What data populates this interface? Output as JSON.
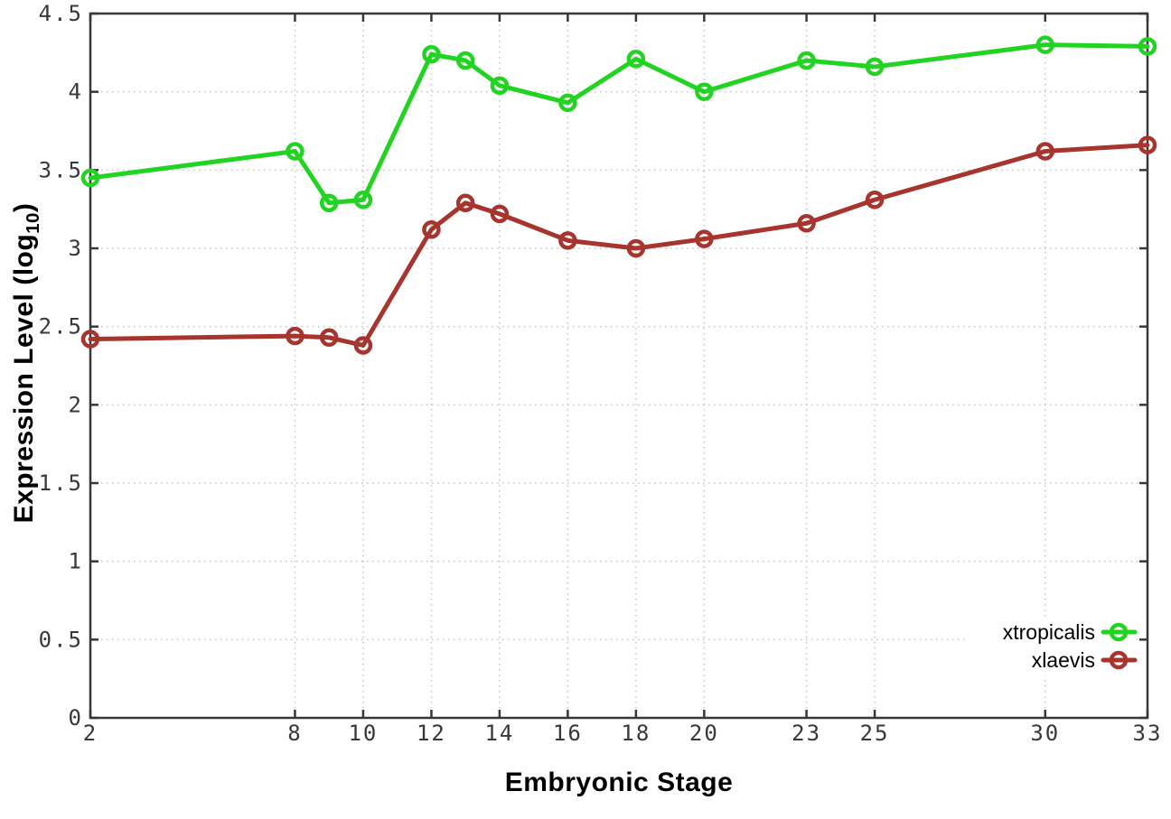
{
  "chart_data": {
    "type": "line",
    "title": "",
    "xlabel": "Embryonic Stage",
    "ylabel": "Expression Level (log10)",
    "ylabel_parts": {
      "prefix": "Expression Level (log",
      "subscript": "10",
      "suffix": ")"
    },
    "x": [
      2,
      8,
      9,
      10,
      12,
      13,
      14,
      16,
      18,
      20,
      23,
      25,
      30,
      33
    ],
    "xlim": [
      2,
      33
    ],
    "ylim": [
      0,
      4.5
    ],
    "xticks": [
      2,
      8,
      10,
      12,
      14,
      16,
      18,
      20,
      23,
      25,
      30,
      33
    ],
    "yticks": [
      0,
      0.5,
      1,
      1.5,
      2,
      2.5,
      3,
      3.5,
      4,
      4.5
    ],
    "grid": true,
    "legend_position": "bottom-right",
    "series": [
      {
        "name": "xtropicalis",
        "color": "#22d422",
        "values": [
          3.45,
          3.62,
          3.29,
          3.31,
          4.24,
          4.2,
          4.04,
          3.93,
          4.21,
          4.0,
          4.2,
          4.16,
          4.3,
          4.29
        ]
      },
      {
        "name": "xlaevis",
        "color": "#a8342e",
        "values": [
          2.42,
          2.44,
          2.43,
          2.38,
          3.12,
          3.29,
          3.22,
          3.05,
          3.0,
          3.06,
          3.16,
          3.31,
          3.62,
          3.66
        ]
      }
    ]
  },
  "styles": {
    "background": "#ffffff",
    "axis_color": "#383838",
    "grid_color": "#c4c4c4",
    "tick_label_color": "#383838",
    "legend_text_color": "#000000"
  }
}
